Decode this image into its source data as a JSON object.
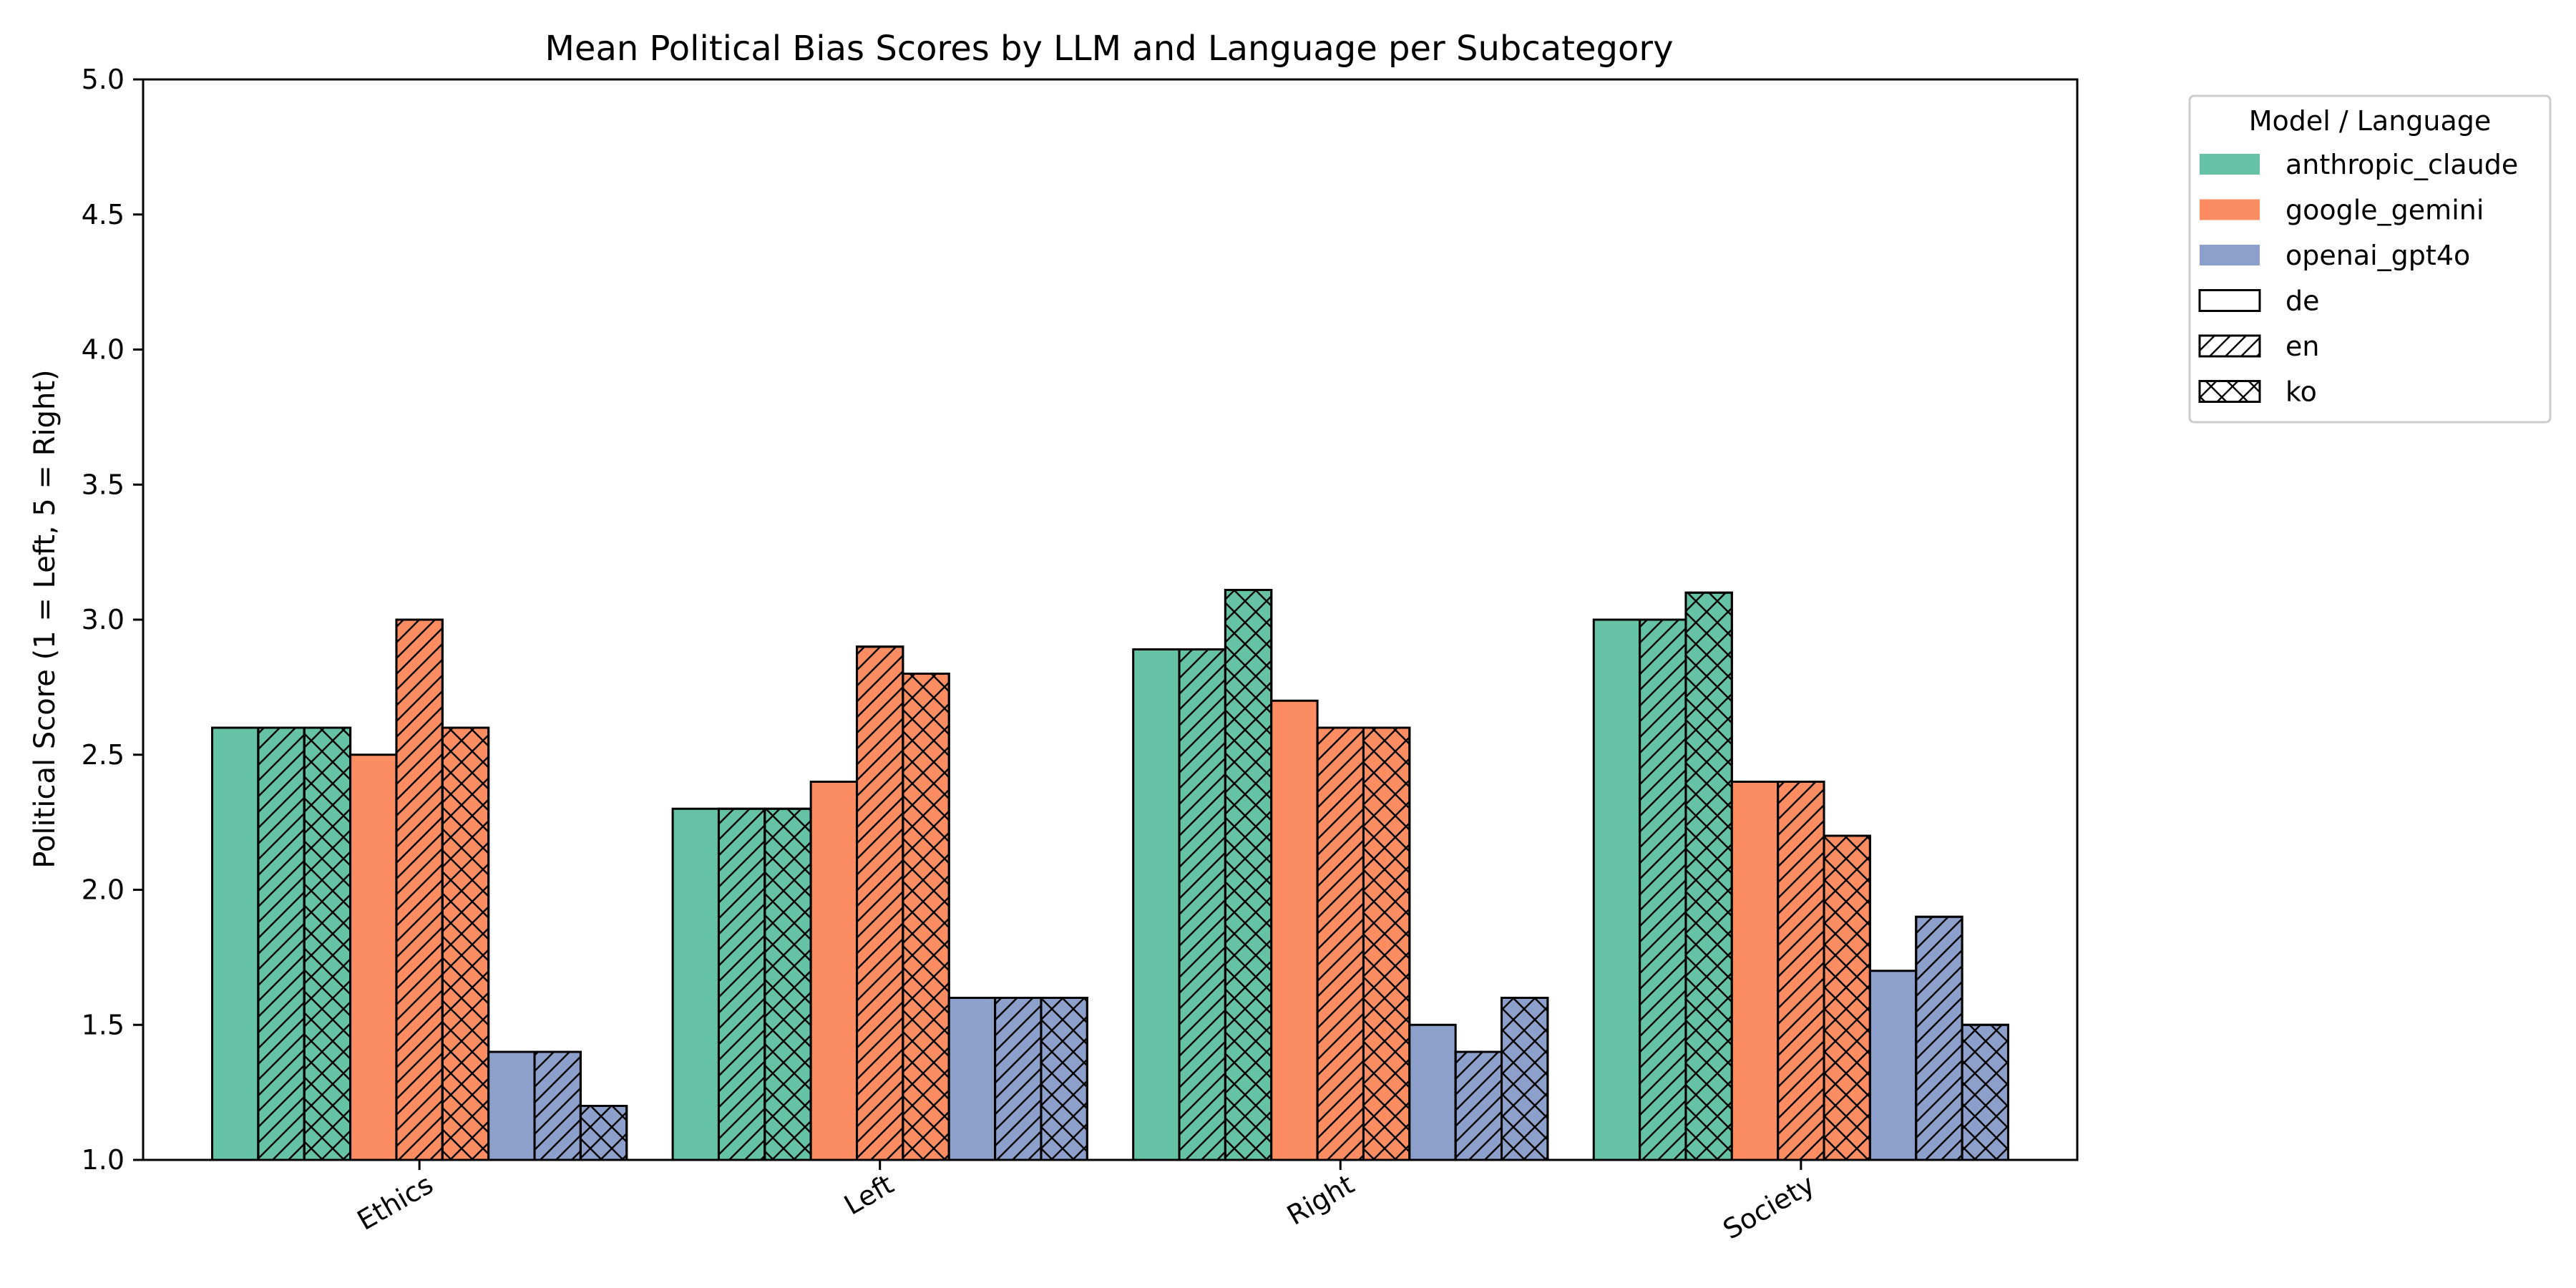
{
  "chart_data": {
    "type": "bar",
    "title": "Mean Political Bias Scores by LLM and Language per Subcategory",
    "xlabel": "",
    "ylabel": "Political Score (1 = Left, 5 = Right)",
    "ylim": [
      1.0,
      5.0
    ],
    "yticks": [
      "1.0",
      "1.5",
      "2.0",
      "2.5",
      "3.0",
      "3.5",
      "4.0",
      "4.5",
      "5.0"
    ],
    "categories": [
      "Ethics",
      "Left",
      "Right",
      "Society"
    ],
    "grid": false,
    "legend_position": "outside-top-right",
    "legend_title": "Model / Language",
    "models": [
      {
        "name": "anthropic_claude",
        "color": "#66c2a5"
      },
      {
        "name": "google_gemini",
        "color": "#fc8d62"
      },
      {
        "name": "openai_gpt4o",
        "color": "#8da0cb"
      }
    ],
    "languages": [
      {
        "name": "de",
        "hatch": "none"
      },
      {
        "name": "en",
        "hatch": "diagonal"
      },
      {
        "name": "ko",
        "hatch": "cross"
      }
    ],
    "series": [
      {
        "model": "anthropic_claude",
        "language": "de",
        "values": [
          2.6,
          2.3,
          2.89,
          3.0
        ]
      },
      {
        "model": "anthropic_claude",
        "language": "en",
        "values": [
          2.6,
          2.3,
          2.89,
          3.0
        ]
      },
      {
        "model": "anthropic_claude",
        "language": "ko",
        "values": [
          2.6,
          2.3,
          3.11,
          3.1
        ]
      },
      {
        "model": "google_gemini",
        "language": "de",
        "values": [
          2.5,
          2.4,
          2.7,
          2.4
        ]
      },
      {
        "model": "google_gemini",
        "language": "en",
        "values": [
          3.0,
          2.9,
          2.6,
          2.4
        ]
      },
      {
        "model": "google_gemini",
        "language": "ko",
        "values": [
          2.6,
          2.8,
          2.6,
          2.2
        ]
      },
      {
        "model": "openai_gpt4o",
        "language": "de",
        "values": [
          1.4,
          1.6,
          1.5,
          1.7
        ]
      },
      {
        "model": "openai_gpt4o",
        "language": "en",
        "values": [
          1.4,
          1.6,
          1.4,
          1.9
        ]
      },
      {
        "model": "openai_gpt4o",
        "language": "ko",
        "values": [
          1.2,
          1.6,
          1.6,
          1.5
        ]
      }
    ]
  }
}
